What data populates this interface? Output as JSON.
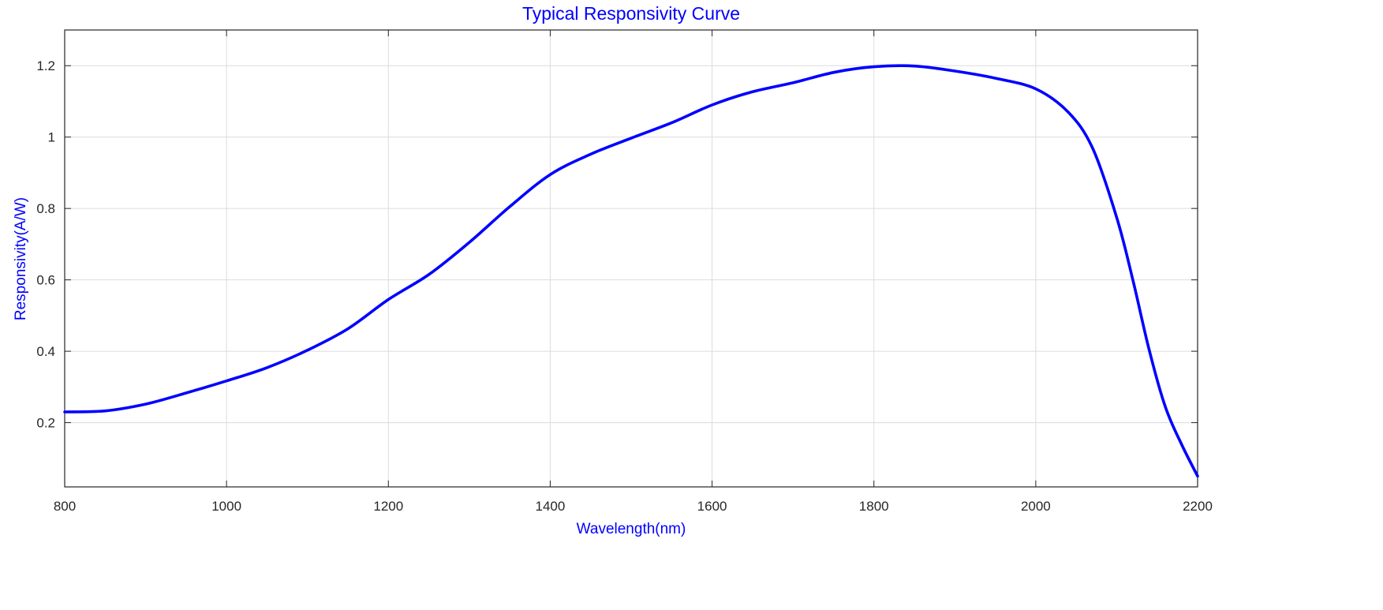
{
  "chart_data": {
    "type": "line",
    "title": "Typical Responsivity Curve",
    "xlabel": "Wavelength(nm)",
    "ylabel": "Responsivity(A/W)",
    "xlim": [
      800,
      2200
    ],
    "ylim": [
      0.02,
      1.3
    ],
    "xticks": [
      800,
      1000,
      1200,
      1400,
      1600,
      1800,
      2000,
      2200
    ],
    "yticks": [
      0.2,
      0.4,
      0.6,
      0.8,
      1,
      1.2
    ],
    "xtick_labels": [
      "800",
      "1000",
      "1200",
      "1400",
      "1600",
      "1800",
      "2000",
      "2200"
    ],
    "ytick_labels": [
      "0.2",
      "0.4",
      "0.6",
      "0.8",
      "1",
      "1.2"
    ],
    "grid": true,
    "line_color": "#0000ff",
    "series": [
      {
        "x": [
          800,
          850,
          900,
          950,
          1000,
          1050,
          1100,
          1150,
          1200,
          1250,
          1300,
          1350,
          1400,
          1450,
          1500,
          1550,
          1600,
          1650,
          1700,
          1750,
          1800,
          1850,
          1900,
          1950,
          2000,
          2040,
          2070,
          2100,
          2120,
          2140,
          2160,
          2180,
          2200
        ],
        "y": [
          0.23,
          0.233,
          0.252,
          0.283,
          0.317,
          0.354,
          0.403,
          0.463,
          0.545,
          0.615,
          0.705,
          0.805,
          0.895,
          0.952,
          0.997,
          1.04,
          1.09,
          1.127,
          1.152,
          1.181,
          1.197,
          1.199,
          1.185,
          1.165,
          1.135,
          1.07,
          0.97,
          0.775,
          0.6,
          0.405,
          0.245,
          0.14,
          0.05
        ]
      }
    ]
  }
}
